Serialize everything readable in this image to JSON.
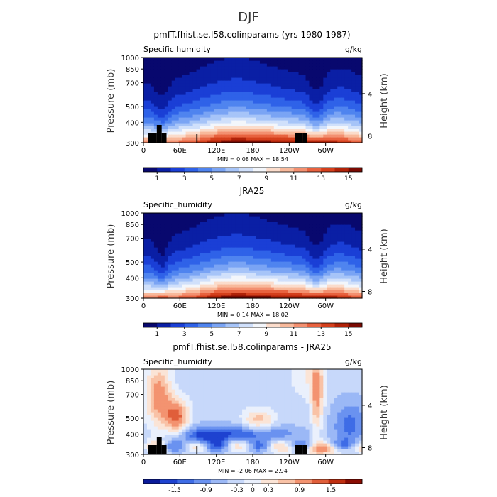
{
  "page_title": "DJF",
  "chart_data": [
    {
      "type": "heatmap",
      "title": "pmfT.fhist.se.l58.colinparams (yrs 1980-1987)",
      "subtitle_left": "Specific humidity",
      "units": "g/kg",
      "ylabel": "Pressure (mb)",
      "ylabel_right": "Height (km)",
      "x_ticks": [
        "0",
        "60E",
        "120E",
        "180",
        "120W",
        "60W"
      ],
      "y_ticks": [
        "300",
        "400",
        "500",
        "700",
        "850",
        "1000"
      ],
      "y_ticks_right": [
        "8",
        "4"
      ],
      "stats": "MIN = 0.08 MAX = 18.54",
      "colorbar_ticks": [
        "1",
        "3",
        "5",
        "7",
        "9",
        "11",
        "13",
        "15"
      ],
      "colorbar_range": [
        0,
        16
      ],
      "field": "model",
      "terrain": true
    },
    {
      "type": "heatmap",
      "title": "JRA25",
      "subtitle_left": "Specific_humidity",
      "units": "g/kg",
      "ylabel": "Pressure (mb)",
      "ylabel_right": "Height (km)",
      "x_ticks": [
        "0",
        "60E",
        "120E",
        "180",
        "120W",
        "60W"
      ],
      "y_ticks": [
        "300",
        "400",
        "500",
        "700",
        "850",
        "1000"
      ],
      "y_ticks_right": [
        "8",
        "4"
      ],
      "stats": "MIN = 0.14 MAX = 18.02",
      "colorbar_ticks": [
        "1",
        "3",
        "5",
        "7",
        "9",
        "11",
        "13",
        "15"
      ],
      "colorbar_range": [
        0,
        16
      ],
      "field": "obs",
      "terrain": false
    },
    {
      "type": "heatmap",
      "title": "pmfT.fhist.se.l58.colinparams - JRA25",
      "subtitle_left": "Specific_humidity",
      "units": "g/kg",
      "ylabel": "Pressure (mb)",
      "ylabel_right": "Height (km)",
      "x_ticks": [
        "0",
        "60E",
        "120E",
        "180",
        "120W",
        "60W"
      ],
      "y_ticks": [
        "300",
        "400",
        "500",
        "700",
        "850",
        "1000"
      ],
      "y_ticks_right": [
        "8",
        "4"
      ],
      "stats": "MIN = -2.06 MAX = 2.94",
      "colorbar_ticks": [
        "-1.5",
        "-0.9",
        "-0.3",
        "0",
        "0.3",
        "0.9",
        "1.5"
      ],
      "colorbar_range": [
        -2.1,
        2.1
      ],
      "field": "diff",
      "terrain": true
    }
  ]
}
